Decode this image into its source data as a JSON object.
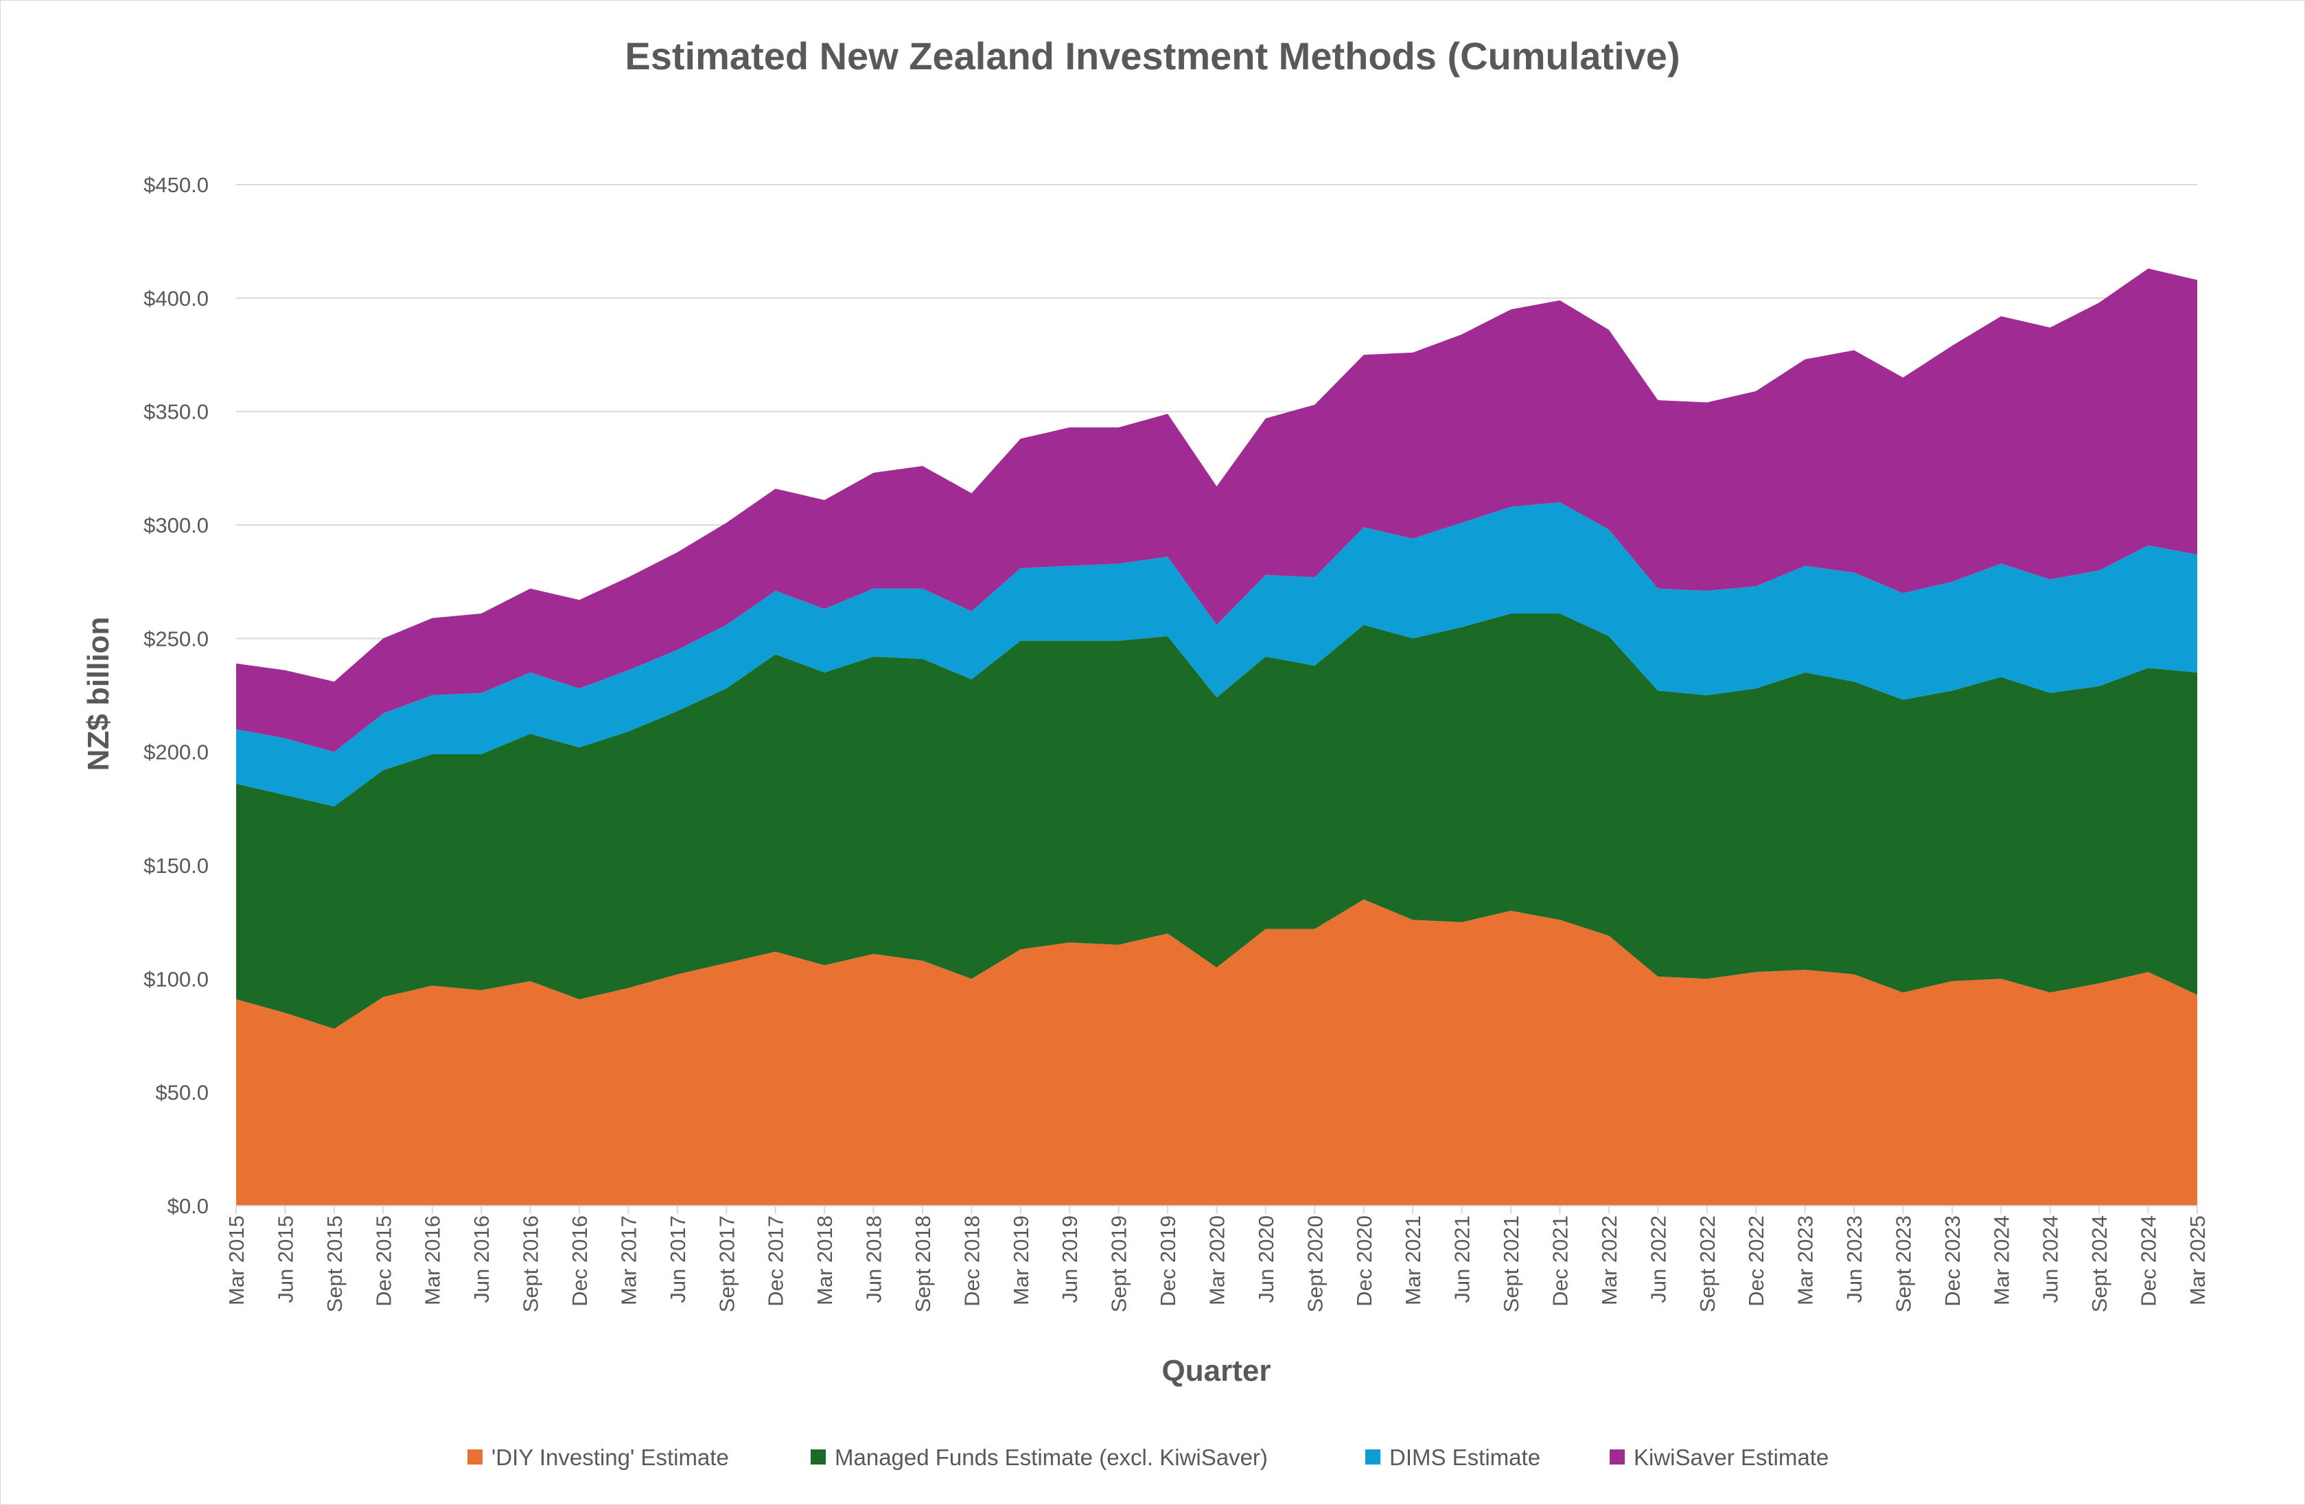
{
  "chart_data": {
    "type": "area",
    "stacked": true,
    "title": "Estimated New Zealand Investment Methods (Cumulative)",
    "xlabel": "Quarter",
    "ylabel": "NZ$ billion",
    "ylim": [
      0,
      450
    ],
    "yticks": [
      0,
      50,
      100,
      150,
      200,
      250,
      300,
      350,
      400,
      450
    ],
    "ytick_labels": [
      "$0.0",
      "$50.0",
      "$100.0",
      "$150.0",
      "$200.0",
      "$250.0",
      "$300.0",
      "$350.0",
      "$400.0",
      "$450.0"
    ],
    "grid": true,
    "legend_position": "bottom",
    "categories": [
      "Mar 2015",
      "Jun 2015",
      "Sept 2015",
      "Dec 2015",
      "Mar 2016",
      "Jun 2016",
      "Sept 2016",
      "Dec 2016",
      "Mar 2017",
      "Jun 2017",
      "Sept 2017",
      "Dec 2017",
      "Mar 2018",
      "Jun 2018",
      "Sept 2018",
      "Dec 2018",
      "Mar 2019",
      "Jun 2019",
      "Sept 2019",
      "Dec 2019",
      "Mar 2020",
      "Jun 2020",
      "Sept 2020",
      "Dec 2020",
      "Mar 2021",
      "Jun 2021",
      "Sept 2021",
      "Dec 2021",
      "Mar 2022",
      "Jun 2022",
      "Sept 2022",
      "Dec 2022",
      "Mar 2023",
      "Jun 2023",
      "Sept 2023",
      "Dec 2023",
      "Mar 2024",
      "Jun 2024",
      "Sept 2024",
      "Dec 2024",
      "Mar 2025"
    ],
    "series": [
      {
        "name": "'DIY Investing' Estimate",
        "color": "#E97132",
        "values": [
          91,
          85,
          78,
          92,
          97,
          95,
          99,
          91,
          96,
          102,
          107,
          112,
          106,
          111,
          108,
          100,
          113,
          116,
          115,
          120,
          105,
          122,
          122,
          135,
          126,
          125,
          130,
          126,
          119,
          101,
          100,
          103,
          104,
          102,
          94,
          99,
          100,
          94,
          98,
          103,
          93
        ]
      },
      {
        "name": "Managed Funds Estimate (excl. KiwiSaver)",
        "color": "#1B6B26",
        "values": [
          95,
          96,
          98,
          100,
          102,
          104,
          109,
          111,
          113,
          116,
          121,
          131,
          129,
          131,
          133,
          132,
          136,
          133,
          134,
          131,
          119,
          120,
          116,
          121,
          124,
          130,
          131,
          135,
          132,
          126,
          125,
          125,
          131,
          129,
          129,
          128,
          133,
          132,
          131,
          134,
          142
        ]
      },
      {
        "name": "DIMS Estimate",
        "color": "#0E9ED6",
        "values": [
          24,
          25,
          24,
          25,
          26,
          27,
          27,
          26,
          27,
          27,
          28,
          28,
          28,
          30,
          31,
          30,
          32,
          33,
          34,
          35,
          32,
          36,
          39,
          43,
          44,
          46,
          47,
          49,
          47,
          45,
          46,
          45,
          47,
          48,
          47,
          48,
          50,
          50,
          51,
          54,
          52
        ]
      },
      {
        "name": "KiwiSaver Estimate",
        "color": "#A02B93",
        "values": [
          29,
          30,
          31,
          33,
          34,
          35,
          37,
          39,
          41,
          43,
          45,
          45,
          48,
          51,
          54,
          52,
          57,
          61,
          60,
          63,
          61,
          69,
          76,
          76,
          82,
          83,
          87,
          89,
          88,
          83,
          83,
          86,
          91,
          98,
          95,
          104,
          109,
          111,
          118,
          122,
          121
        ]
      }
    ]
  }
}
